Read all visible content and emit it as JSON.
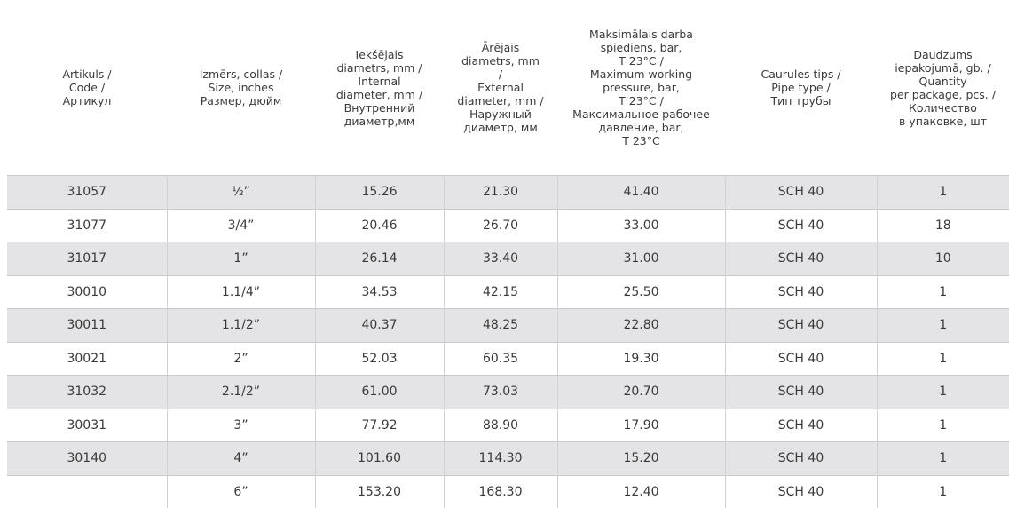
{
  "table": {
    "header": [
      [
        "Artikuls  /",
        "Code /",
        "Артикул"
      ],
      [
        "Izmērs, collas  /",
        "Size, inches",
        "Размер, дюйм"
      ],
      [
        "Iekšējais",
        "diametrs,  mm  /",
        "Internal",
        "diameter, mm /",
        "Внутренний",
        "диаметр,мм"
      ],
      [
        "Ārējais",
        "diametrs, mm",
        "/",
        "External",
        "diameter, mm /",
        "Наружный",
        "диаметр, мм"
      ],
      [
        "Maksimālais darba",
        "spiediens, bar,",
        "T 23°C /",
        "Maximum working",
        "pressure, bar,",
        "T 23°C /",
        "Максимальное рабочее",
        "давление, bar,",
        "T 23°C"
      ],
      [
        "Caurules tips  /",
        "Pipe type /",
        "Тип трубы"
      ],
      [
        "Daudzums",
        "iepakojumā, gb.  /",
        "Quantity",
        "per package, pcs. /",
        "Количество",
        "в упаковке, шт"
      ]
    ],
    "rows": [
      [
        "31057",
        "½”",
        "15.26",
        "21.30",
        "41.40",
        "SCH 40",
        "1"
      ],
      [
        "31077",
        "3/4”",
        "20.46",
        "26.70",
        "33.00",
        "SCH 40",
        "18"
      ],
      [
        "31017",
        "1”",
        "26.14",
        "33.40",
        "31.00",
        "SCH 40",
        "10"
      ],
      [
        "30010",
        "1.1/4”",
        "34.53",
        "42.15",
        "25.50",
        "SCH 40",
        "1"
      ],
      [
        "30011",
        "1.1/2”",
        "40.37",
        "48.25",
        "22.80",
        "SCH 40",
        "1"
      ],
      [
        "30021",
        "2”",
        "52.03",
        "60.35",
        "19.30",
        "SCH 40",
        "1"
      ],
      [
        "31032",
        "2.1/2”",
        "61.00",
        "73.03",
        "20.70",
        "SCH 40",
        "1"
      ],
      [
        "30031",
        "3”",
        "77.92",
        "88.90",
        "17.90",
        "SCH 40",
        "1"
      ],
      [
        "30140",
        "4”",
        "101.60",
        "114.30",
        "15.20",
        "SCH 40",
        "1"
      ],
      [
        null,
        "6”",
        "153.20",
        "168.30",
        "12.40",
        "SCH 40",
        "1"
      ]
    ]
  }
}
